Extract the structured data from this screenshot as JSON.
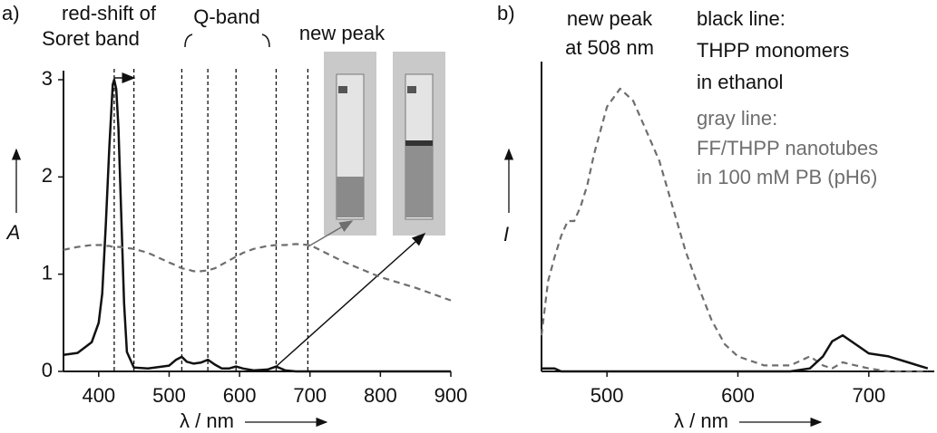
{
  "chart_data": [
    {
      "type": "line",
      "panel_label": "a)",
      "xlabel": "λ / nm",
      "ylabel": "A",
      "xlim": [
        350,
        900
      ],
      "ylim": [
        0,
        3
      ],
      "xticks": [
        400,
        500,
        600,
        700,
        800,
        900
      ],
      "yticks": [
        0,
        1,
        2,
        3
      ],
      "x": [
        350,
        370,
        390,
        400,
        405,
        410,
        415,
        420,
        422,
        425,
        428,
        432,
        436,
        440,
        450,
        470,
        500,
        510,
        518,
        525,
        535,
        545,
        555,
        565,
        575,
        585,
        595,
        605,
        620,
        640,
        652,
        665,
        680,
        700,
        750,
        800,
        850,
        900
      ],
      "series": [
        {
          "color": "#111111",
          "dash": false,
          "values": [
            0.17,
            0.19,
            0.3,
            0.5,
            0.8,
            1.5,
            2.3,
            2.95,
            3.0,
            2.9,
            2.5,
            1.6,
            0.7,
            0.2,
            0.04,
            0.03,
            0.06,
            0.12,
            0.15,
            0.1,
            0.08,
            0.09,
            0.12,
            0.07,
            0.03,
            0.03,
            0.05,
            0.03,
            0.01,
            0.02,
            0.05,
            0.01,
            0,
            0,
            0,
            0,
            0,
            0
          ]
        },
        {
          "color": "#6e6e6e",
          "dash": true,
          "values": [
            1.25,
            1.28,
            1.3,
            1.3,
            1.3,
            1.29,
            1.29,
            1.28,
            1.28,
            1.28,
            1.28,
            1.28,
            1.27,
            1.27,
            1.26,
            1.22,
            1.12,
            1.09,
            1.06,
            1.05,
            1.03,
            1.03,
            1.04,
            1.06,
            1.1,
            1.14,
            1.18,
            1.22,
            1.26,
            1.29,
            1.3,
            1.3,
            1.31,
            1.3,
            1.12,
            0.97,
            0.86,
            0.73
          ]
        }
      ],
      "vlines": [
        422,
        450,
        518,
        555,
        595,
        652,
        697
      ],
      "annotations": [
        [
          "red-shift of",
          "Soret band"
        ],
        [
          "Q-band"
        ],
        [
          "new peak"
        ]
      ]
    },
    {
      "type": "line",
      "panel_label": "b)",
      "xlabel": "λ / nm",
      "ylabel": "I",
      "xlim": [
        450,
        750
      ],
      "ylim": [
        0,
        1
      ],
      "xticks": [
        500,
        600,
        700
      ],
      "x": [
        450,
        455,
        460,
        465,
        470,
        475,
        480,
        485,
        490,
        500,
        510,
        520,
        530,
        540,
        550,
        560,
        570,
        580,
        590,
        600,
        620,
        640,
        655,
        665,
        672,
        680,
        690,
        700,
        715,
        730,
        745
      ],
      "series": [
        {
          "color": "#6e6e6e",
          "dash": true,
          "values": [
            0.12,
            0.3,
            0.38,
            0.45,
            0.5,
            0.5,
            0.55,
            0.62,
            0.72,
            0.88,
            0.94,
            0.9,
            0.8,
            0.7,
            0.55,
            0.4,
            0.28,
            0.17,
            0.09,
            0.05,
            0.02,
            0.02,
            0.05,
            0.02,
            0.01,
            0.03,
            0.02,
            0.01,
            0,
            0,
            0
          ]
        },
        {
          "color": "#111111",
          "dash": false,
          "values": [
            0.01,
            0.01,
            0.01,
            0,
            0,
            0,
            0,
            0,
            0,
            0,
            0,
            0,
            0,
            0,
            0,
            0,
            0,
            0,
            0,
            0,
            0,
            0,
            0.01,
            0.05,
            0.1,
            0.12,
            0.09,
            0.06,
            0.05,
            0.03,
            0.01
          ]
        }
      ],
      "annotations": [
        [
          "new peak",
          "at 508 nm"
        ],
        [
          "black line:",
          "THPP monomers",
          "in ethanol"
        ],
        [
          "gray line:",
          "FF/THPP nanotubes",
          "in 100 mM PB (pH6)"
        ]
      ]
    }
  ]
}
